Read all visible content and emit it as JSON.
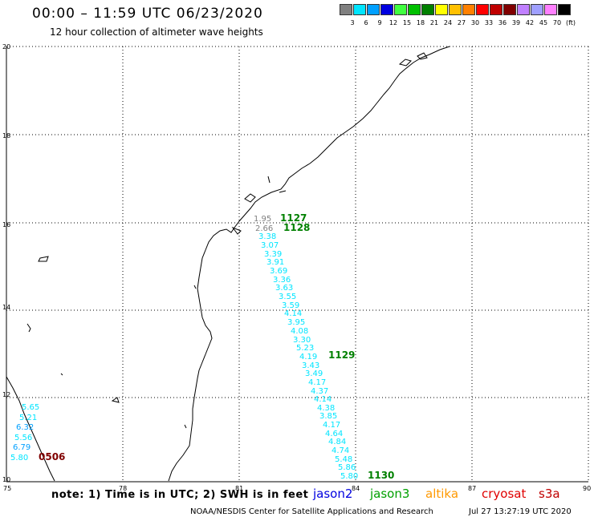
{
  "header": {
    "title": "00:00 – 11:59 UTC 06/23/2020",
    "subtitle": "12 hour collection of altimeter wave heights"
  },
  "legend": {
    "unit": "(ft)",
    "bins": [
      {
        "label": "3",
        "color": "#808080"
      },
      {
        "label": "6",
        "color": "#00e5ff"
      },
      {
        "label": "9",
        "color": "#00a0ff"
      },
      {
        "label": "12",
        "color": "#0000e0"
      },
      {
        "label": "15",
        "color": "#40ff40"
      },
      {
        "label": "18",
        "color": "#00c000"
      },
      {
        "label": "21",
        "color": "#008000"
      },
      {
        "label": "24",
        "color": "#ffff00"
      },
      {
        "label": "27",
        "color": "#ffc000"
      },
      {
        "label": "30",
        "color": "#ff8000"
      },
      {
        "label": "33",
        "color": "#ff0000"
      },
      {
        "label": "36",
        "color": "#c00000"
      },
      {
        "label": "39",
        "color": "#800000"
      },
      {
        "label": "42",
        "color": "#c080ff"
      },
      {
        "label": "45",
        "color": "#a0a0ff"
      },
      {
        "label": "70",
        "color": "#ff80ff"
      },
      {
        "label": "",
        "color": "#000000"
      }
    ]
  },
  "map": {
    "lon_min": 75,
    "lon_max": 90,
    "lat_min": 10,
    "lat_max": 20,
    "x_ticks": [
      "75",
      "78",
      "81",
      "84",
      "87",
      "90"
    ],
    "y_ticks": [
      "10",
      "12",
      "14",
      "16",
      "18",
      "20"
    ],
    "track_labels": [
      {
        "text": "1127",
        "color": "#008000"
      },
      {
        "text": "1128",
        "color": "#008000"
      },
      {
        "text": "1129",
        "color": "#008000"
      },
      {
        "text": "1130",
        "color": "#008000"
      },
      {
        "text": "0506",
        "color": "#800000"
      }
    ],
    "observations": [
      {
        "value": "1.95",
        "color": "#808080"
      },
      {
        "value": "2.66",
        "color": "#808080"
      },
      {
        "value": "3.38",
        "color": "#00e5ff"
      },
      {
        "value": "3.07",
        "color": "#00e5ff"
      },
      {
        "value": "3.39",
        "color": "#00e5ff"
      },
      {
        "value": "3.91",
        "color": "#00e5ff"
      },
      {
        "value": "3.69",
        "color": "#00e5ff"
      },
      {
        "value": "3.36",
        "color": "#00e5ff"
      },
      {
        "value": "3.63",
        "color": "#00e5ff"
      },
      {
        "value": "3.55",
        "color": "#00e5ff"
      },
      {
        "value": "3.59",
        "color": "#00e5ff"
      },
      {
        "value": "4.14",
        "color": "#00e5ff"
      },
      {
        "value": "3.95",
        "color": "#00e5ff"
      },
      {
        "value": "4.08",
        "color": "#00e5ff"
      },
      {
        "value": "3.30",
        "color": "#00e5ff"
      },
      {
        "value": "5.23",
        "color": "#00e5ff"
      },
      {
        "value": "4.19",
        "color": "#00e5ff"
      },
      {
        "value": "3.43",
        "color": "#00e5ff"
      },
      {
        "value": "3.49",
        "color": "#00e5ff"
      },
      {
        "value": "4.17",
        "color": "#00e5ff"
      },
      {
        "value": "4.37",
        "color": "#00e5ff"
      },
      {
        "value": "4.14",
        "color": "#00e5ff"
      },
      {
        "value": "4.38",
        "color": "#00e5ff"
      },
      {
        "value": "3.85",
        "color": "#00e5ff"
      },
      {
        "value": "4.17",
        "color": "#00e5ff"
      },
      {
        "value": "4.64",
        "color": "#00e5ff"
      },
      {
        "value": "4.84",
        "color": "#00e5ff"
      },
      {
        "value": "4.74",
        "color": "#00e5ff"
      },
      {
        "value": "5.48",
        "color": "#00e5ff"
      },
      {
        "value": "5.86",
        "color": "#00e5ff"
      },
      {
        "value": "5.80",
        "color": "#00e5ff"
      },
      {
        "value": "5.65",
        "color": "#00e5ff"
      },
      {
        "value": "5.21",
        "color": "#00e5ff"
      },
      {
        "value": "6.32",
        "color": "#00a0ff"
      },
      {
        "value": "5.56",
        "color": "#00e5ff"
      },
      {
        "value": "6.79",
        "color": "#00a0ff"
      },
      {
        "value": "5.80",
        "color": "#00e5ff"
      }
    ]
  },
  "footer": {
    "note": "note: 1) Time is in UTC; 2) SWH is in feet",
    "satellites": [
      {
        "name": "jason2",
        "color": "#0000e0"
      },
      {
        "name": "jason3",
        "color": "#00a000"
      },
      {
        "name": "altika",
        "color": "#ff9900"
      },
      {
        "name": "cryosat",
        "color": "#e00000"
      },
      {
        "name": "s3a",
        "color": "#c00000"
      }
    ],
    "credit": "NOAA/NESDIS Center for Satellite Applications and Research",
    "timestamp": "Jul 27 13:27:19 UTC 2020"
  }
}
